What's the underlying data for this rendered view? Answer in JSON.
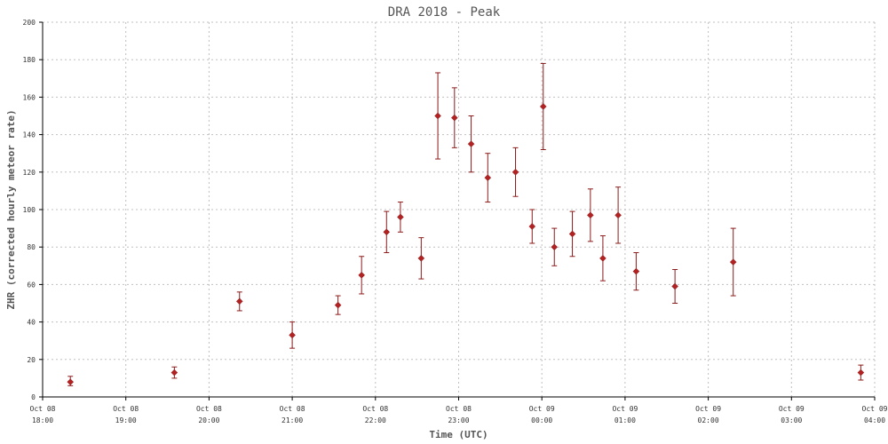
{
  "chart_data": {
    "type": "scatter",
    "title": "DRA 2018 - Peak",
    "xlabel": "Time (UTC)",
    "ylabel": "ZHR (corrected hourly meteor rate)",
    "ylim": [
      0,
      200
    ],
    "yticks": [
      0,
      20,
      40,
      60,
      80,
      100,
      120,
      140,
      160,
      180,
      200
    ],
    "xlim": [
      "2018-10-08 18:00",
      "2018-10-09 04:00"
    ],
    "xticks": [
      {
        "time": "2018-10-08 18:00",
        "line1": "Oct 08",
        "line2": "18:00"
      },
      {
        "time": "2018-10-08 19:00",
        "line1": "Oct 08",
        "line2": "19:00"
      },
      {
        "time": "2018-10-08 20:00",
        "line1": "Oct 08",
        "line2": "20:00"
      },
      {
        "time": "2018-10-08 21:00",
        "line1": "Oct 08",
        "line2": "21:00"
      },
      {
        "time": "2018-10-08 22:00",
        "line1": "Oct 08",
        "line2": "22:00"
      },
      {
        "time": "2018-10-08 23:00",
        "line1": "Oct 08",
        "line2": "23:00"
      },
      {
        "time": "2018-10-09 00:00",
        "line1": "Oct 09",
        "line2": "00:00"
      },
      {
        "time": "2018-10-09 01:00",
        "line1": "Oct 09",
        "line2": "01:00"
      },
      {
        "time": "2018-10-09 02:00",
        "line1": "Oct 09",
        "line2": "02:00"
      },
      {
        "time": "2018-10-09 03:00",
        "line1": "Oct 09",
        "line2": "03:00"
      },
      {
        "time": "2018-10-09 04:00",
        "line1": "Oct 09",
        "line2": "04:00"
      }
    ],
    "grid": true,
    "marker": "diamond",
    "colors": {
      "point": "#b22222",
      "errorbar": "#8b1a1a",
      "grid": "#c0c0c0",
      "axis": "#000000"
    },
    "points": [
      {
        "time": "2018-10-08 18:20",
        "y": 8,
        "err_low": 6,
        "err_high": 11
      },
      {
        "time": "2018-10-08 19:35",
        "y": 13,
        "err_low": 10,
        "err_high": 16
      },
      {
        "time": "2018-10-08 20:22",
        "y": 51,
        "err_low": 46,
        "err_high": 56
      },
      {
        "time": "2018-10-08 21:00",
        "y": 33,
        "err_low": 26,
        "err_high": 40
      },
      {
        "time": "2018-10-08 21:33",
        "y": 49,
        "err_low": 44,
        "err_high": 54
      },
      {
        "time": "2018-10-08 21:50",
        "y": 65,
        "err_low": 55,
        "err_high": 75
      },
      {
        "time": "2018-10-08 22:08",
        "y": 88,
        "err_low": 77,
        "err_high": 99
      },
      {
        "time": "2018-10-08 22:18",
        "y": 96,
        "err_low": 88,
        "err_high": 104
      },
      {
        "time": "2018-10-08 22:33",
        "y": 74,
        "err_low": 63,
        "err_high": 85
      },
      {
        "time": "2018-10-08 22:45",
        "y": 150,
        "err_low": 127,
        "err_high": 173
      },
      {
        "time": "2018-10-08 22:57",
        "y": 149,
        "err_low": 133,
        "err_high": 165
      },
      {
        "time": "2018-10-08 23:09",
        "y": 135,
        "err_low": 120,
        "err_high": 150
      },
      {
        "time": "2018-10-08 23:21",
        "y": 117,
        "err_low": 104,
        "err_high": 130
      },
      {
        "time": "2018-10-08 23:41",
        "y": 120,
        "err_low": 107,
        "err_high": 133
      },
      {
        "time": "2018-10-08 23:53",
        "y": 91,
        "err_low": 82,
        "err_high": 100
      },
      {
        "time": "2018-10-09 00:01",
        "y": 155,
        "err_low": 132,
        "err_high": 178
      },
      {
        "time": "2018-10-09 00:09",
        "y": 80,
        "err_low": 70,
        "err_high": 90
      },
      {
        "time": "2018-10-09 00:22",
        "y": 87,
        "err_low": 75,
        "err_high": 99
      },
      {
        "time": "2018-10-09 00:35",
        "y": 97,
        "err_low": 83,
        "err_high": 111
      },
      {
        "time": "2018-10-09 00:44",
        "y": 74,
        "err_low": 62,
        "err_high": 86
      },
      {
        "time": "2018-10-09 00:55",
        "y": 97,
        "err_low": 82,
        "err_high": 112
      },
      {
        "time": "2018-10-09 01:08",
        "y": 67,
        "err_low": 57,
        "err_high": 77
      },
      {
        "time": "2018-10-09 01:36",
        "y": 59,
        "err_low": 50,
        "err_high": 68
      },
      {
        "time": "2018-10-09 02:18",
        "y": 72,
        "err_low": 54,
        "err_high": 90
      },
      {
        "time": "2018-10-09 03:50",
        "y": 13,
        "err_low": 9,
        "err_high": 17
      }
    ]
  }
}
